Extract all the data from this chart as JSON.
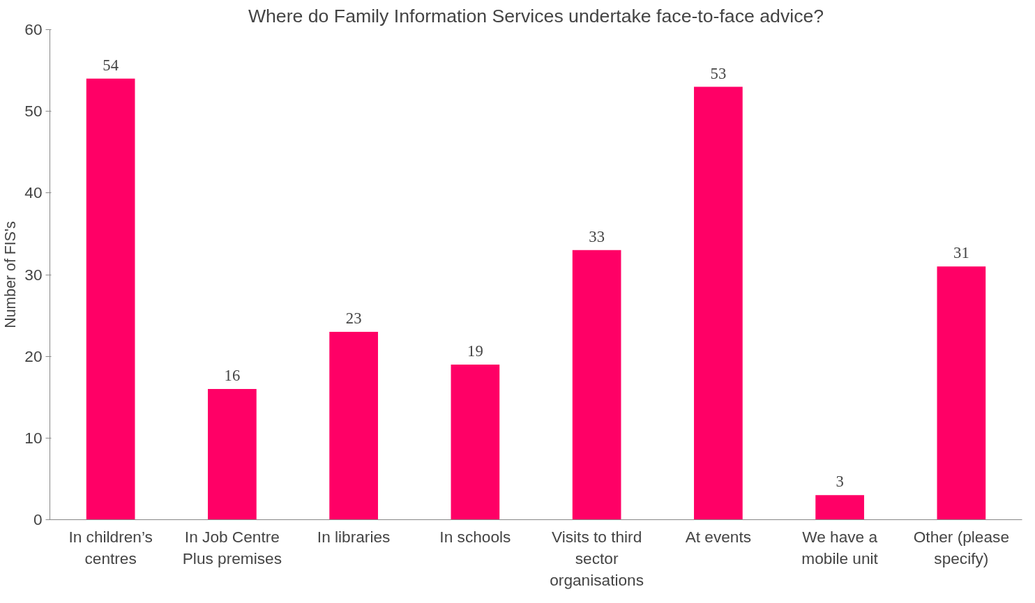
{
  "chart_data": {
    "type": "bar",
    "title": "Where do Family Information Services undertake face-to-face advice?",
    "ylabel": "Number of FIS's",
    "categories": [
      "In children’s centres",
      "In Job Centre Plus premises",
      "In libraries",
      "In schools",
      "Visits to third sector organisations",
      "At events",
      "We have a mobile unit",
      "Other (please specify)"
    ],
    "values": [
      54,
      16,
      23,
      19,
      33,
      53,
      3,
      31
    ],
    "color": "#ff0066",
    "ylim": [
      0,
      60
    ],
    "yticks": [
      0,
      10,
      20,
      30,
      40,
      50,
      60
    ],
    "grid": false,
    "data_labels": true
  }
}
